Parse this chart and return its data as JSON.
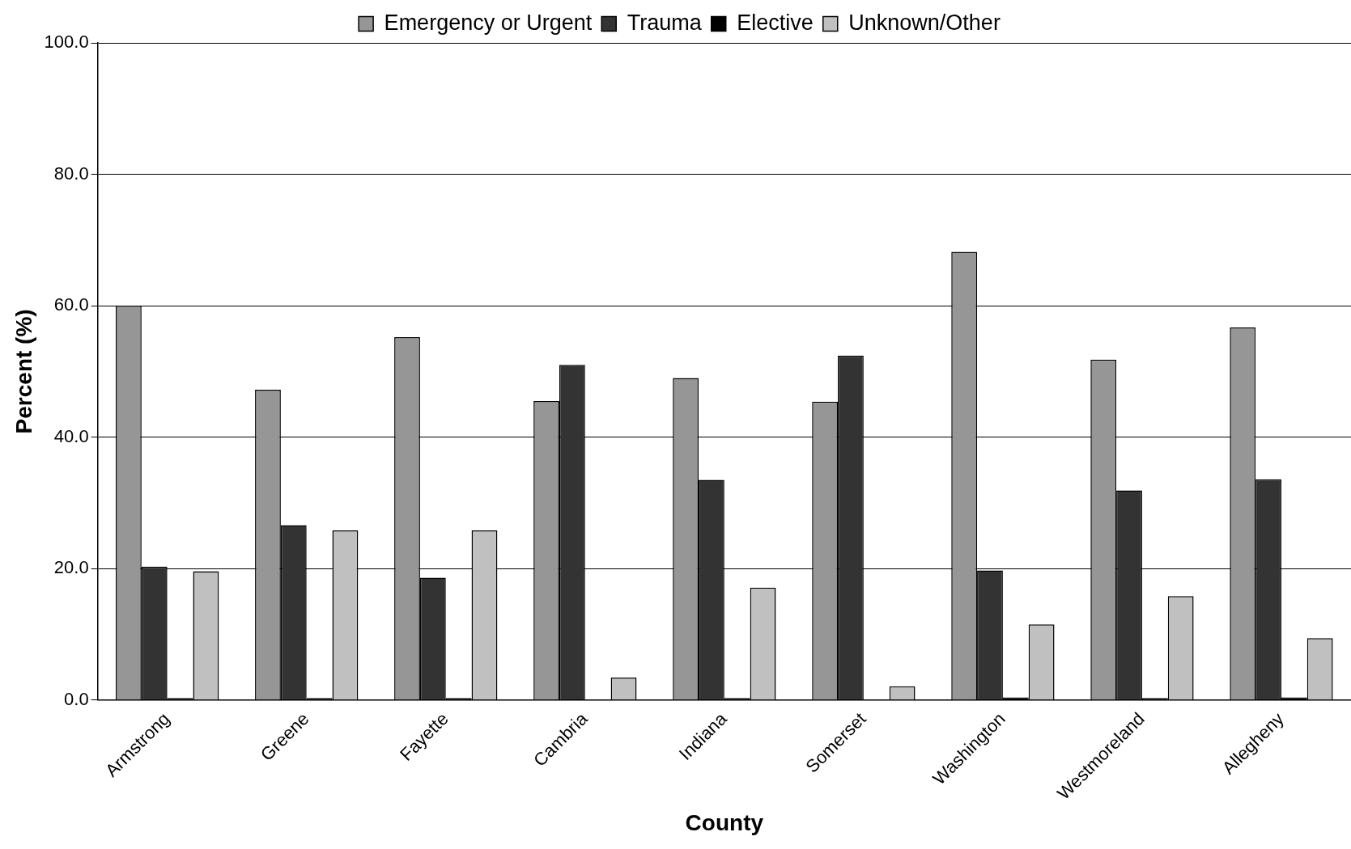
{
  "chart_data": {
    "type": "bar",
    "xlabel": "County",
    "ylabel": "Percent (%)",
    "categories": [
      "Armstrong",
      "Greene",
      "Fayette",
      "Cambria",
      "Indiana",
      "Somerset",
      "Washington",
      "Westmoreland",
      "Allegheny"
    ],
    "series": [
      {
        "name": "Emergency or Urgent",
        "color": "#969696",
        "values": [
          60.0,
          47.2,
          55.2,
          45.5,
          49.0,
          45.4,
          68.2,
          51.8,
          56.7
        ]
      },
      {
        "name": "Trauma",
        "color": "#333333",
        "values": [
          20.3,
          26.6,
          18.6,
          51.0,
          33.5,
          52.4,
          19.7,
          31.9,
          33.6
        ]
      },
      {
        "name": "Elective",
        "color": "#000000",
        "values": [
          0.3,
          0.3,
          0.3,
          0,
          0.3,
          0,
          0.4,
          0.3,
          0.4
        ]
      },
      {
        "name": "Unknown/Other",
        "color": "#c0c0c0",
        "values": [
          19.6,
          25.8,
          25.8,
          3.4,
          17.1,
          2.1,
          11.5,
          15.8,
          9.4
        ]
      }
    ],
    "ylim": [
      0,
      100
    ],
    "yticks": [
      {
        "value": 0,
        "label": "0.0"
      },
      {
        "value": 20,
        "label": "20.0"
      },
      {
        "value": 40,
        "label": "40.0"
      },
      {
        "value": 60,
        "label": "60.0"
      },
      {
        "value": 80,
        "label": "80.0"
      },
      {
        "value": 100,
        "label": "100.0"
      }
    ],
    "grid": "y",
    "legend": "top"
  }
}
